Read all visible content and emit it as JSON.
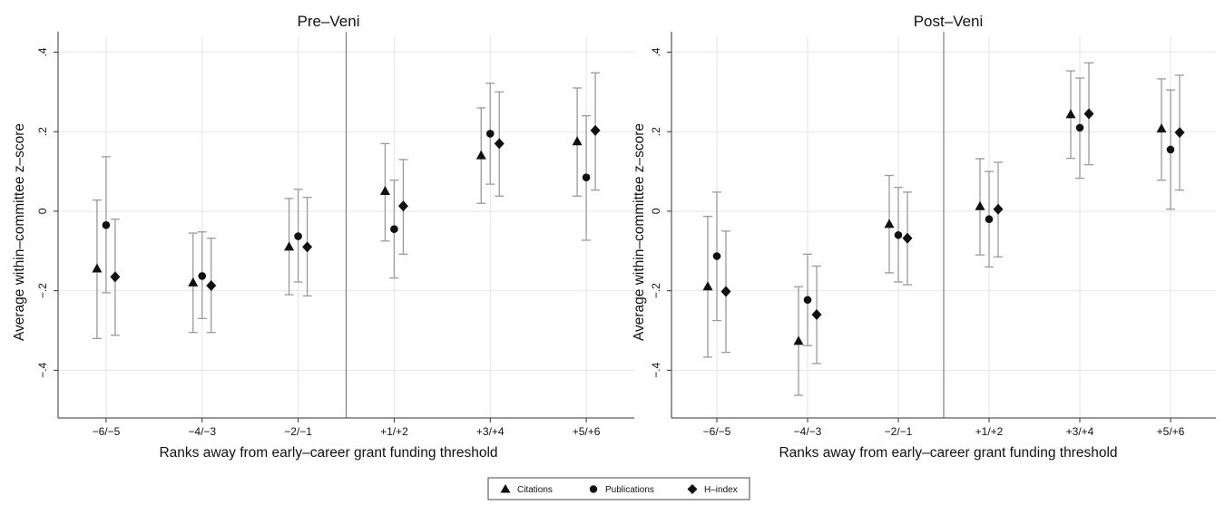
{
  "chart_data": [
    {
      "type": "scatter",
      "title": "Pre–Veni",
      "xlabel": "Ranks away from early–career grant funding threshold",
      "ylabel": "Average within–committee z–score",
      "categories": [
        "−6/−5",
        "−4/−3",
        "−2/−1",
        "+1/+2",
        "+3/+4",
        "+5/+6"
      ],
      "y_ticks": [
        -0.4,
        -0.2,
        0,
        0.2,
        0.4
      ],
      "y_tick_labels": [
        "−.4",
        "−.2",
        "0",
        ".2",
        ".4"
      ],
      "ylim": [
        -0.52,
        0.44
      ],
      "grid": true,
      "threshold_line_between": [
        "−2/−1",
        "+1/+2"
      ],
      "error_bars": "confidence intervals",
      "series": [
        {
          "name": "Citations",
          "marker": "triangle",
          "values": [
            -0.145,
            -0.18,
            -0.09,
            0.05,
            0.14,
            0.175
          ],
          "lower": [
            -0.32,
            -0.305,
            -0.21,
            -0.075,
            0.02,
            0.038
          ],
          "upper": [
            0.028,
            -0.055,
            0.032,
            0.17,
            0.26,
            0.31
          ]
        },
        {
          "name": "Publications",
          "marker": "circle",
          "values": [
            -0.035,
            -0.163,
            -0.063,
            -0.045,
            0.195,
            0.085
          ],
          "lower": [
            -0.205,
            -0.27,
            -0.178,
            -0.168,
            0.068,
            -0.073
          ],
          "upper": [
            0.137,
            -0.052,
            0.055,
            0.078,
            0.322,
            0.24
          ]
        },
        {
          "name": "H–index",
          "marker": "diamond",
          "values": [
            -0.165,
            -0.187,
            -0.09,
            0.013,
            0.17,
            0.203
          ],
          "lower": [
            -0.312,
            -0.305,
            -0.213,
            -0.108,
            0.038,
            0.053
          ],
          "upper": [
            -0.02,
            -0.068,
            0.035,
            0.13,
            0.3,
            0.348
          ]
        }
      ]
    },
    {
      "type": "scatter",
      "title": "Post–Veni",
      "xlabel": "Ranks away from early–career grant funding threshold",
      "ylabel": "Average within–committee z–score",
      "categories": [
        "−6/−5",
        "−4/−3",
        "−2/−1",
        "+1/+2",
        "+3/+4",
        "+5/+6"
      ],
      "y_ticks": [
        -0.4,
        -0.2,
        0,
        0.2,
        0.4
      ],
      "y_tick_labels": [
        "−.4",
        "−.2",
        "0",
        ".2",
        ".4"
      ],
      "ylim": [
        -0.52,
        0.44
      ],
      "grid": true,
      "threshold_line_between": [
        "−2/−1",
        "+1/+2"
      ],
      "error_bars": "confidence intervals",
      "series": [
        {
          "name": "Citations",
          "marker": "triangle",
          "values": [
            -0.19,
            -0.327,
            -0.033,
            0.012,
            0.243,
            0.207
          ],
          "lower": [
            -0.367,
            -0.463,
            -0.155,
            -0.11,
            0.133,
            0.078
          ],
          "upper": [
            -0.013,
            -0.19,
            0.09,
            0.132,
            0.353,
            0.333
          ]
        },
        {
          "name": "Publications",
          "marker": "circle",
          "values": [
            -0.113,
            -0.223,
            -0.06,
            -0.02,
            0.21,
            0.155
          ],
          "lower": [
            -0.275,
            -0.338,
            -0.178,
            -0.14,
            0.083,
            0.005
          ],
          "upper": [
            0.048,
            -0.108,
            0.06,
            0.1,
            0.335,
            0.305
          ]
        },
        {
          "name": "H–index",
          "marker": "diamond",
          "values": [
            -0.202,
            -0.26,
            -0.068,
            0.005,
            0.245,
            0.198
          ],
          "lower": [
            -0.355,
            -0.383,
            -0.185,
            -0.115,
            0.117,
            0.053
          ],
          "upper": [
            -0.05,
            -0.138,
            0.048,
            0.123,
            0.373,
            0.342
          ]
        }
      ]
    }
  ],
  "legend": {
    "position": "bottom-center",
    "items": [
      {
        "name": "Citations",
        "marker": "triangle"
      },
      {
        "name": "Publications",
        "marker": "circle"
      },
      {
        "name": "H–index",
        "marker": "diamond"
      }
    ]
  },
  "colors": {
    "marker": "#111111",
    "error_bar": "#9a9a9a",
    "grid": "#e6e6e6",
    "axis": "#333333",
    "threshold_line": "#7f7f7f"
  }
}
